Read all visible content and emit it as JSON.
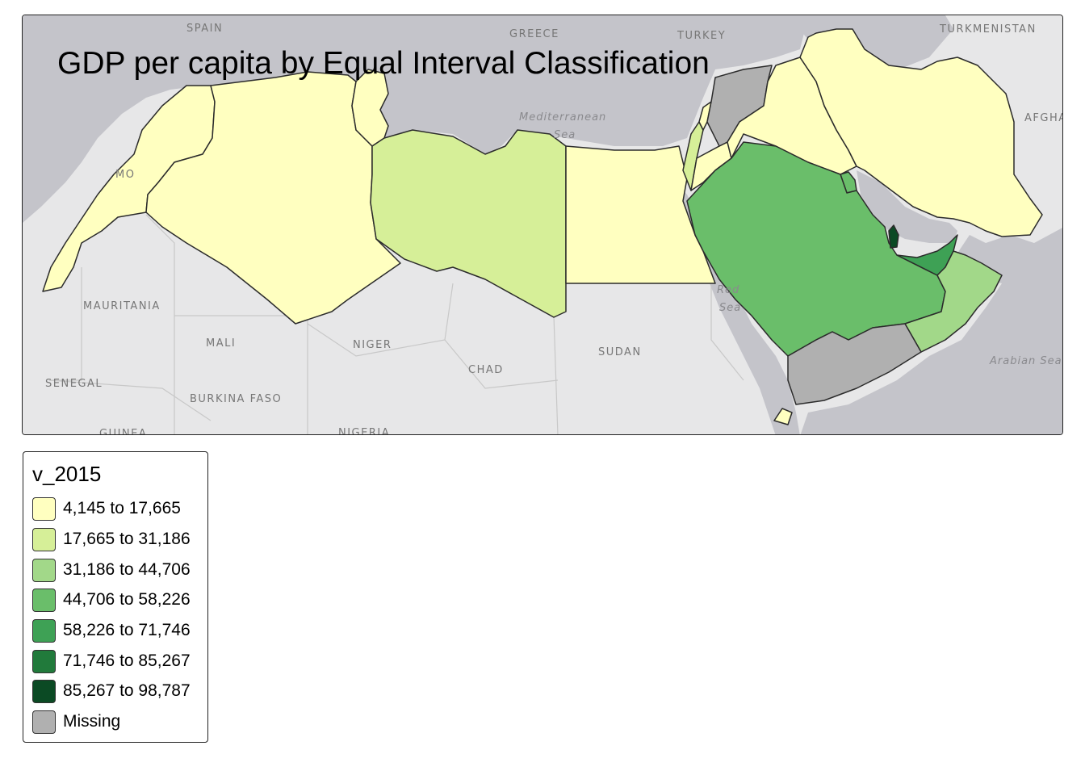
{
  "map": {
    "title": "GDP per capita by Equal Interval Classification",
    "colors": {
      "class1": "#ffffc0",
      "class2": "#d6ef98",
      "class3": "#a2d889",
      "class4": "#6abe6a",
      "class5": "#3ea155",
      "class6": "#217a3b",
      "class7": "#0b4a24",
      "missing": "#b0b0b0",
      "sea": "#c4c4ca",
      "land": "#e7e7e8"
    },
    "place_labels": {
      "spain": "SPAIN",
      "greece": "GREECE",
      "turkey": "TURKEY",
      "turkmenistan": "TURKMENISTAN",
      "afghanistan": "AFGHA",
      "morocco": "MO",
      "mauritania": "MAURITANIA",
      "mali": "MALI",
      "niger": "NIGER",
      "chad": "CHAD",
      "sudan": "SUDAN",
      "senegal": "SENEGAL",
      "burkina_faso": "BURKINA FASO",
      "guinea": "GUINEA",
      "nigeria": "NIGERIA"
    },
    "sea_labels": {
      "mediterranean_1": "Mediterranean",
      "mediterranean_2": "Sea",
      "red_sea_1": "Red",
      "red_sea_2": "Sea",
      "arabian_sea": "Arabian Sea"
    },
    "countries": [
      {
        "name": "Morocco",
        "class": "class1"
      },
      {
        "name": "Algeria",
        "class": "class1"
      },
      {
        "name": "Tunisia",
        "class": "class1"
      },
      {
        "name": "Libya",
        "class": "class2"
      },
      {
        "name": "Egypt",
        "class": "class1"
      },
      {
        "name": "Israel",
        "class": "class2"
      },
      {
        "name": "Jordan",
        "class": "class1"
      },
      {
        "name": "Lebanon",
        "class": "class1"
      },
      {
        "name": "Syria",
        "class": "missing"
      },
      {
        "name": "Iraq",
        "class": "class1"
      },
      {
        "name": "Iran",
        "class": "class1"
      },
      {
        "name": "Kuwait",
        "class": "class4"
      },
      {
        "name": "Saudi Arabia",
        "class": "class4"
      },
      {
        "name": "Qatar",
        "class": "class7"
      },
      {
        "name": "United Arab Emirates",
        "class": "class5"
      },
      {
        "name": "Oman",
        "class": "class3"
      },
      {
        "name": "Yemen",
        "class": "missing"
      },
      {
        "name": "Djibouti",
        "class": "class1"
      }
    ]
  },
  "legend": {
    "title": "v_2015",
    "items": [
      {
        "label": "4,145 to 17,665",
        "color": "#ffffc0"
      },
      {
        "label": "17,665 to 31,186",
        "color": "#d6ef98"
      },
      {
        "label": "31,186 to 44,706",
        "color": "#a2d889"
      },
      {
        "label": "44,706 to 58,226",
        "color": "#6abe6a"
      },
      {
        "label": "58,226 to 71,746",
        "color": "#3ea155"
      },
      {
        "label": "71,746 to 85,267",
        "color": "#217a3b"
      },
      {
        "label": "85,267 to 98,787",
        "color": "#0b4a24"
      },
      {
        "label": "Missing",
        "color": "#b0b0b0"
      }
    ]
  }
}
